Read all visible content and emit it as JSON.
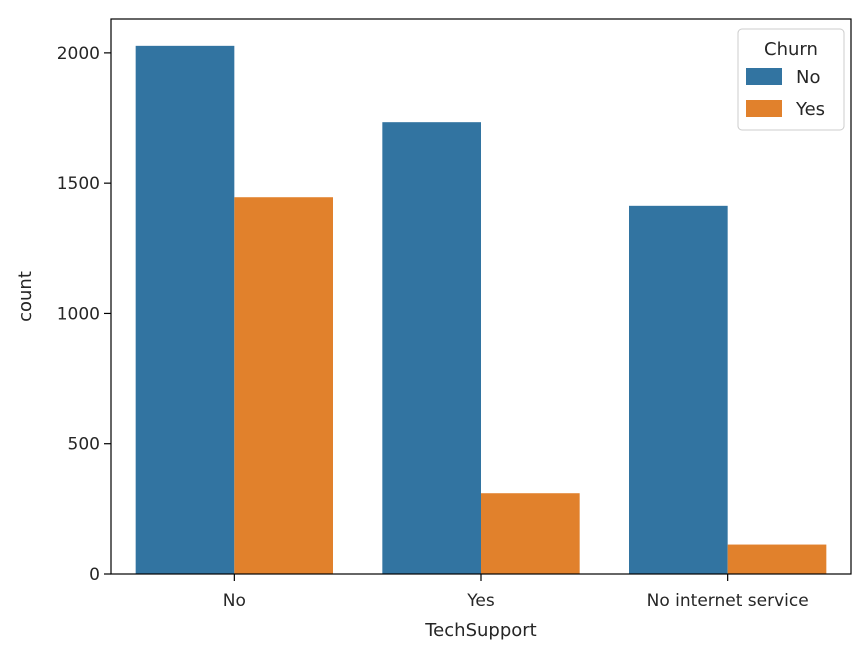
{
  "chart_data": {
    "type": "bar",
    "title": "",
    "xlabel": "TechSupport",
    "ylabel": "count",
    "categories": [
      "No",
      "Yes",
      "No internet service"
    ],
    "series": [
      {
        "name": "No",
        "values": [
          2027,
          1734,
          1413
        ]
      },
      {
        "name": "Yes",
        "values": [
          1446,
          310,
          113
        ]
      }
    ],
    "ylim": [
      0,
      2130
    ],
    "yticks": [
      0,
      500,
      1000,
      1500,
      2000
    ],
    "grid": false,
    "legend": {
      "title": "Churn",
      "location": "top-right"
    },
    "colors": {
      "No": "#3274a1",
      "Yes": "#e1812c"
    }
  }
}
